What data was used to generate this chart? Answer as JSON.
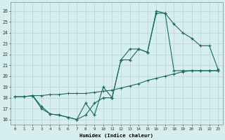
{
  "xlabel": "Humidex (Indice chaleur)",
  "xlim": [
    -0.5,
    23.5
  ],
  "ylim": [
    15.5,
    26.8
  ],
  "background_color": "#d6eeee",
  "grid_color": "#b8d4d4",
  "line_color": "#1a6b5a",
  "yticks": [
    16,
    17,
    18,
    19,
    20,
    21,
    22,
    23,
    24,
    25,
    26
  ],
  "xticks": [
    0,
    1,
    2,
    3,
    4,
    5,
    6,
    7,
    8,
    9,
    10,
    11,
    12,
    13,
    14,
    15,
    16,
    17,
    18,
    19,
    20,
    21,
    22,
    23
  ],
  "line1_x": [
    0,
    1,
    2,
    3,
    4,
    5,
    6,
    7,
    8,
    9,
    10,
    11,
    12,
    13,
    14,
    15,
    16,
    17,
    18,
    19,
    20,
    21,
    22,
    23
  ],
  "line1_y": [
    18.1,
    18.1,
    18.2,
    17.2,
    16.5,
    16.4,
    16.2,
    16.0,
    16.4,
    17.5,
    18.0,
    18.0,
    21.5,
    21.5,
    22.5,
    22.2,
    25.8,
    25.8,
    20.5,
    20.5,
    20.5,
    20.5,
    20.5,
    20.5
  ],
  "line2_x": [
    0,
    1,
    2,
    3,
    4,
    5,
    6,
    7,
    8,
    9,
    10,
    11,
    12,
    13,
    14,
    15,
    16,
    17,
    18,
    19,
    20,
    21,
    22,
    23
  ],
  "line2_y": [
    18.1,
    18.1,
    18.2,
    18.2,
    18.3,
    18.3,
    18.4,
    18.4,
    18.4,
    18.5,
    18.6,
    18.7,
    18.9,
    19.1,
    19.3,
    19.6,
    19.8,
    20.0,
    20.2,
    20.4,
    20.5,
    20.5,
    20.5,
    20.5
  ],
  "line3_x": [
    2,
    3,
    4,
    5,
    6,
    7,
    8,
    9,
    10,
    11,
    12,
    13,
    14,
    15,
    16,
    17,
    18,
    19,
    20,
    21,
    22,
    23
  ],
  "line3_y": [
    18.2,
    17.0,
    16.5,
    16.4,
    16.2,
    16.0,
    17.5,
    16.4,
    19.0,
    18.0,
    21.5,
    22.5,
    22.5,
    22.2,
    26.0,
    25.8,
    24.8,
    24.0,
    23.5,
    22.8,
    22.8,
    20.6
  ]
}
